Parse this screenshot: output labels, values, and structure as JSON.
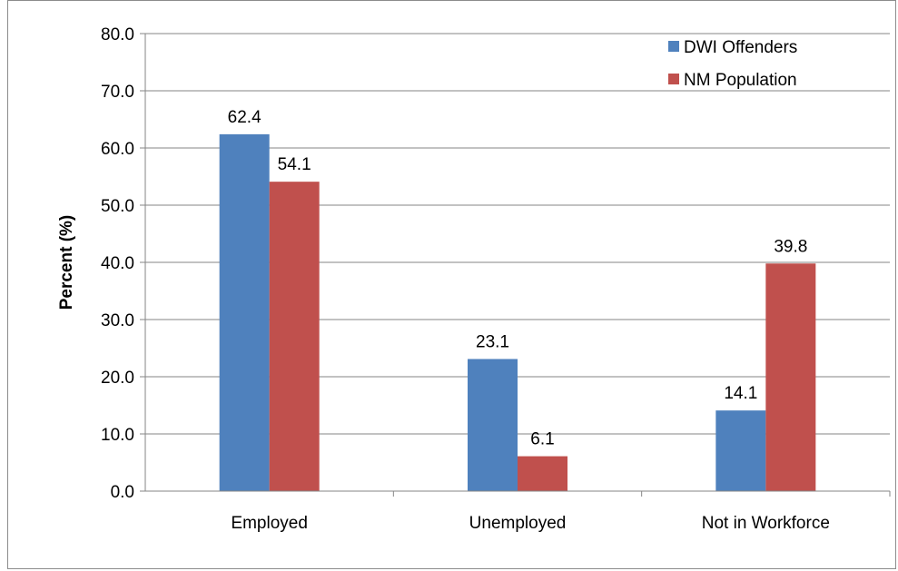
{
  "chart_data": {
    "type": "bar",
    "title": "",
    "xlabel": "",
    "ylabel": "Percent (%)",
    "ylim": [
      0,
      80
    ],
    "yticks": [
      "0.0",
      "10.0",
      "20.0",
      "30.0",
      "40.0",
      "50.0",
      "60.0",
      "70.0",
      "80.0"
    ],
    "categories": [
      "Employed",
      "Unemployed",
      "Not in Workforce"
    ],
    "series": [
      {
        "name": "DWI Offenders",
        "color": "#4f81bd",
        "values": [
          62.4,
          23.1,
          14.1
        ],
        "labels": [
          "62.4",
          "23.1",
          "14.1"
        ]
      },
      {
        "name": "NM Population",
        "color": "#c0504d",
        "values": [
          54.1,
          6.1,
          39.8
        ],
        "labels": [
          "54.1",
          "6.1",
          "39.8"
        ]
      }
    ],
    "grid": true,
    "legend_position": "top-right"
  }
}
